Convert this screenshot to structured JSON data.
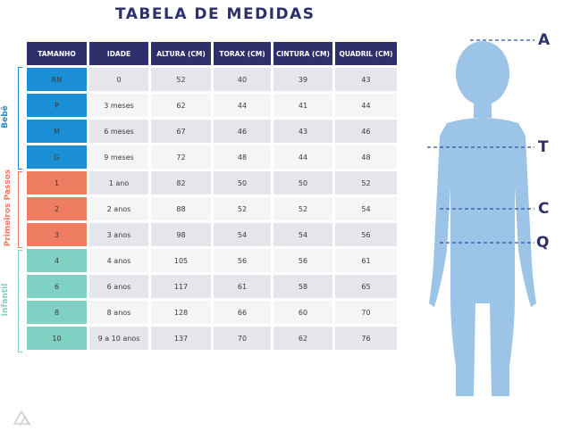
{
  "title": "TABELA DE MEDIDAS",
  "headers": [
    "TAMANHO",
    "IDADE",
    "ALTURA (CM)",
    "TORAX (CM)",
    "CINTURA (CM)",
    "QUADRIL (CM)"
  ],
  "groups": {
    "bebe": {
      "label": "Bebê",
      "color": "#1a8fd6"
    },
    "primeiros_passos": {
      "label": "Primeiros Passos",
      "color": "#ef7d62"
    },
    "infantil": {
      "label": "Infantil",
      "color": "#7fd1c4"
    }
  },
  "rows": [
    {
      "size": "RN",
      "age": "0",
      "height": "52",
      "chest": "40",
      "waist": "39",
      "hip": "43"
    },
    {
      "size": "P",
      "age": "3 meses",
      "height": "62",
      "chest": "44",
      "waist": "41",
      "hip": "44"
    },
    {
      "size": "M",
      "age": "6 meses",
      "height": "67",
      "chest": "46",
      "waist": "43",
      "hip": "46"
    },
    {
      "size": "G",
      "age": "9 meses",
      "height": "72",
      "chest": "48",
      "waist": "44",
      "hip": "48"
    },
    {
      "size": "1",
      "age": "1 ano",
      "height": "82",
      "chest": "50",
      "waist": "50",
      "hip": "52"
    },
    {
      "size": "2",
      "age": "2 anos",
      "height": "88",
      "chest": "52",
      "waist": "52",
      "hip": "54"
    },
    {
      "size": "3",
      "age": "3 anos",
      "height": "98",
      "chest": "54",
      "waist": "54",
      "hip": "56"
    },
    {
      "size": "4",
      "age": "4 anos",
      "height": "105",
      "chest": "56",
      "waist": "56",
      "hip": "61"
    },
    {
      "size": "6",
      "age": "6 anos",
      "height": "117",
      "chest": "61",
      "waist": "58",
      "hip": "65"
    },
    {
      "size": "8",
      "age": "8 anos",
      "height": "128",
      "chest": "66",
      "waist": "60",
      "hip": "70"
    },
    {
      "size": "10",
      "age": "9 a 10 anos",
      "height": "137",
      "chest": "70",
      "waist": "62",
      "hip": "76"
    }
  ],
  "markers": {
    "a": "A",
    "t": "T",
    "c": "C",
    "q": "Q"
  },
  "colors": {
    "header": "#2e2f6b",
    "figure": "#9cc4e6",
    "guide": "#2e4fa0"
  }
}
